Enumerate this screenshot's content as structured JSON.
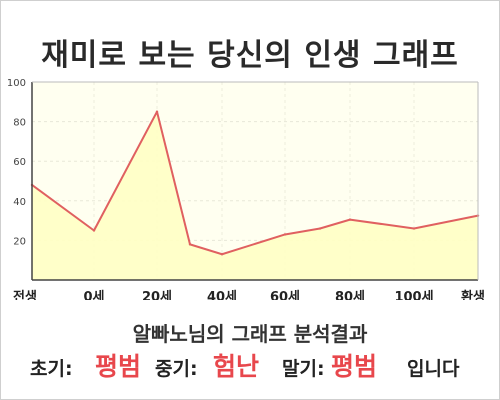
{
  "page": {
    "title": "재미로 보는 당신의 인생 그래프",
    "caption": "알빠노님의 그래프 분석결과"
  },
  "summary": {
    "early_label": "초기:",
    "early_value": "평범",
    "mid_label": "중기:",
    "mid_value": "험난",
    "late_label": "말기:",
    "late_value": "평범",
    "ending": "입니다"
  },
  "colors": {
    "line": "#e06060",
    "fill": "#ffffc4",
    "plot_bg": "#fffff0",
    "accent": "#e8474c"
  },
  "chart_data": {
    "type": "area",
    "title": "재미로 보는 당신의 인생 그래프",
    "x_tick_labels": [
      "전생",
      "0세",
      "20세",
      "40세",
      "60세",
      "80세",
      "100세",
      "환생"
    ],
    "y_ticks": [
      20,
      40,
      60,
      80,
      100
    ],
    "ylim": [
      0,
      100
    ],
    "grid": true,
    "points": [
      {
        "x": "전생",
        "y": 48
      },
      {
        "x": "0세",
        "y": 25
      },
      {
        "x": "20세",
        "y": 85
      },
      {
        "x": "30세",
        "y": 18
      },
      {
        "x": "40세",
        "y": 13
      },
      {
        "x": "60세",
        "y": 23
      },
      {
        "x": "70세",
        "y": 26
      },
      {
        "x": "80세",
        "y": 30.5
      },
      {
        "x": "100세",
        "y": 26
      },
      {
        "x": "환생",
        "y": 32.5
      }
    ]
  }
}
